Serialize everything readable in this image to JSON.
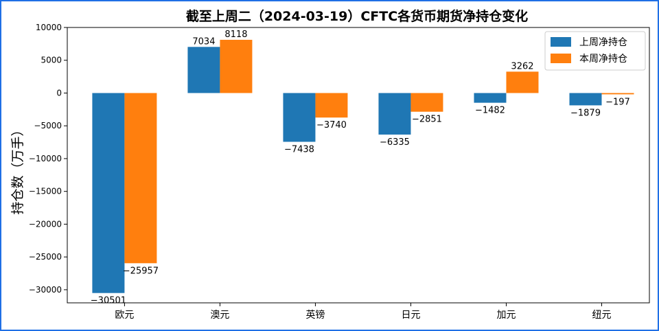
{
  "chart_data": {
    "type": "bar",
    "title": "截至上周二（2024-03-19）CFTC各货币期货净持仓变化",
    "xlabel": "",
    "ylabel": "持仓数（万手）",
    "categories": [
      "欧元",
      "澳元",
      "英镑",
      "日元",
      "加元",
      "纽元"
    ],
    "series": [
      {
        "name": "上周净持仓",
        "color": "#1f77b4",
        "values": [
          -30501,
          7034,
          -7438,
          -6335,
          -1482,
          -1879
        ]
      },
      {
        "name": "本周净持仓",
        "color": "#ff7f0e",
        "values": [
          -25957,
          8118,
          -3740,
          -2851,
          3262,
          -197
        ]
      }
    ],
    "ylim": [
      -32000,
      10000
    ],
    "yticks": [
      10000,
      5000,
      0,
      -5000,
      -10000,
      -15000,
      -20000,
      -25000,
      -30000
    ],
    "legend_position": "top-right",
    "grid": false
  }
}
